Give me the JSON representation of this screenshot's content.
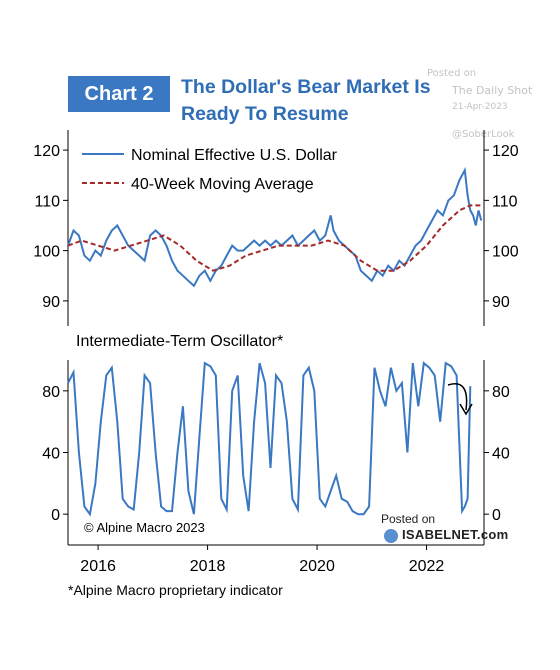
{
  "header": {
    "badge": "Chart 2",
    "title_line1": "The Dollar's Bear Market Is",
    "title_line2": "Ready To Resume"
  },
  "watermarks": {
    "posted_on": "Posted on",
    "source": "The Daily Shot",
    "date": "21-Apr-2023",
    "handle": "@SoberLook"
  },
  "footnote": "*Alpine Macro proprietary indicator",
  "credit": "© Alpine Macro 2023",
  "isabel": {
    "posted": "Posted on",
    "brand": "ISABELNET.com"
  },
  "colors": {
    "usd": "#3a78c3",
    "ma": "#a52a2a",
    "axis": "#000000",
    "badge": "#3a78c3"
  },
  "chart_data": [
    {
      "type": "line",
      "panel": "top",
      "legend": [
        "Nominal Effective U.S. Dollar",
        "40-Week Moving Average"
      ],
      "legend_position": "top-left",
      "ylim": [
        85,
        124
      ],
      "yticks": [
        90,
        100,
        110,
        120
      ],
      "xlim": [
        2015.45,
        2023.05
      ],
      "series": [
        {
          "name": "Nominal Effective U.S. Dollar",
          "x": [
            2015.45,
            2015.55,
            2015.65,
            2015.75,
            2015.85,
            2015.95,
            2016.05,
            2016.15,
            2016.25,
            2016.35,
            2016.45,
            2016.55,
            2016.65,
            2016.75,
            2016.85,
            2016.95,
            2017.05,
            2017.15,
            2017.25,
            2017.35,
            2017.45,
            2017.55,
            2017.65,
            2017.75,
            2017.85,
            2017.95,
            2018.05,
            2018.15,
            2018.25,
            2018.35,
            2018.45,
            2018.55,
            2018.65,
            2018.75,
            2018.85,
            2018.95,
            2019.05,
            2019.15,
            2019.25,
            2019.35,
            2019.45,
            2019.55,
            2019.65,
            2019.75,
            2019.85,
            2019.95,
            2020.05,
            2020.15,
            2020.2,
            2020.25,
            2020.3,
            2020.4,
            2020.5,
            2020.6,
            2020.7,
            2020.8,
            2020.9,
            2021.0,
            2021.1,
            2021.2,
            2021.3,
            2021.4,
            2021.5,
            2021.6,
            2021.7,
            2021.8,
            2021.9,
            2022.0,
            2022.1,
            2022.2,
            2022.3,
            2022.4,
            2022.5,
            2022.6,
            2022.7,
            2022.75,
            2022.8,
            2022.85,
            2022.9,
            2022.95,
            2023.0
          ],
          "y": [
            101,
            104,
            103,
            99,
            98,
            100,
            99,
            102,
            104,
            105,
            103,
            101,
            100,
            99,
            98,
            103,
            104,
            103,
            101,
            98,
            96,
            95,
            94,
            93,
            95,
            96,
            94,
            96,
            97,
            99,
            101,
            100,
            100,
            101,
            102,
            101,
            102,
            101,
            102,
            101,
            102,
            103,
            101,
            102,
            103,
            104,
            102,
            103,
            105,
            107,
            104,
            102,
            101,
            100,
            99,
            96,
            95,
            94,
            96,
            95,
            97,
            96,
            98,
            97,
            99,
            101,
            102,
            104,
            106,
            108,
            107,
            110,
            111,
            114,
            116,
            111,
            108,
            107,
            105,
            108,
            106
          ]
        },
        {
          "name": "40-Week Moving Average",
          "x": [
            2015.45,
            2015.7,
            2016.0,
            2016.3,
            2016.6,
            2016.9,
            2017.2,
            2017.5,
            2017.8,
            2018.1,
            2018.4,
            2018.7,
            2019.0,
            2019.3,
            2019.6,
            2019.9,
            2020.2,
            2020.5,
            2020.8,
            2021.1,
            2021.4,
            2021.7,
            2022.0,
            2022.3,
            2022.6,
            2022.8,
            2023.0
          ],
          "y": [
            101,
            102,
            101,
            100,
            101,
            102,
            103,
            101,
            98,
            96,
            97,
            99,
            100,
            101,
            101,
            101,
            102,
            101,
            98,
            96,
            96,
            98,
            101,
            105,
            108,
            109,
            109
          ]
        }
      ]
    },
    {
      "type": "line",
      "panel": "bottom",
      "title": "Intermediate-Term Oscillator*",
      "ylim": [
        -20,
        100
      ],
      "yticks": [
        0,
        40,
        80
      ],
      "xticks": [
        2016,
        2018,
        2020,
        2022
      ],
      "xlim": [
        2015.45,
        2023.05
      ],
      "series": [
        {
          "name": "Intermediate-Term Oscillator*",
          "x": [
            2015.45,
            2015.55,
            2015.65,
            2015.75,
            2015.85,
            2015.95,
            2016.05,
            2016.15,
            2016.25,
            2016.35,
            2016.45,
            2016.55,
            2016.65,
            2016.75,
            2016.85,
            2016.95,
            2017.05,
            2017.15,
            2017.25,
            2017.35,
            2017.45,
            2017.55,
            2017.65,
            2017.75,
            2017.85,
            2017.95,
            2018.05,
            2018.15,
            2018.25,
            2018.35,
            2018.45,
            2018.55,
            2018.65,
            2018.75,
            2018.85,
            2018.95,
            2019.05,
            2019.15,
            2019.25,
            2019.35,
            2019.45,
            2019.55,
            2019.65,
            2019.75,
            2019.85,
            2019.95,
            2020.05,
            2020.15,
            2020.25,
            2020.35,
            2020.45,
            2020.55,
            2020.65,
            2020.75,
            2020.85,
            2020.95,
            2021.05,
            2021.15,
            2021.25,
            2021.35,
            2021.45,
            2021.55,
            2021.65,
            2021.75,
            2021.85,
            2021.95,
            2022.05,
            2022.15,
            2022.25,
            2022.35,
            2022.45,
            2022.55,
            2022.65,
            2022.7,
            2022.75,
            2022.8
          ],
          "y": [
            85,
            92,
            40,
            5,
            0,
            20,
            60,
            90,
            95,
            60,
            10,
            5,
            3,
            40,
            90,
            85,
            40,
            5,
            2,
            2,
            40,
            70,
            15,
            0,
            50,
            98,
            96,
            90,
            10,
            3,
            80,
            90,
            25,
            2,
            60,
            98,
            85,
            30,
            90,
            85,
            60,
            10,
            3,
            90,
            95,
            80,
            10,
            5,
            15,
            25,
            10,
            8,
            2,
            0,
            0,
            5,
            95,
            80,
            70,
            95,
            80,
            85,
            40,
            98,
            70,
            98,
            95,
            90,
            60,
            98,
            96,
            90,
            2,
            5,
            10,
            83
          ]
        }
      ]
    }
  ]
}
